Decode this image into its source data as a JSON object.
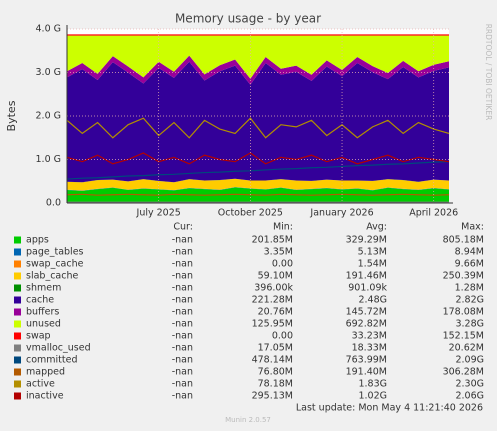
{
  "chart_data": {
    "type": "area",
    "title": "Memory usage - by year",
    "ylabel": "Bytes",
    "side_label": "RRDTOOL / TOBI OETIKER",
    "columns": [
      "Cur:",
      "Min:",
      "Avg:",
      "Max:"
    ],
    "last_update": "Last update: Mon May  4 11:21:40 2026",
    "footer": "Munin 2.0.57",
    "grid": true,
    "categories": [
      null,
      null,
      null,
      null,
      null,
      null,
      "July 2025",
      null,
      null,
      null,
      null,
      null,
      "October 2025",
      null,
      null,
      null,
      null,
      null,
      "January 2026",
      null,
      null,
      null,
      null,
      null,
      "April 2026",
      null
    ],
    "ylim": [
      0,
      4
    ],
    "yticks": [
      {
        "value": 0,
        "label": "0.0"
      },
      {
        "value": 1,
        "label": "1.0 G"
      },
      {
        "value": 2,
        "label": "2.0 G"
      },
      {
        "value": 3,
        "label": "3.0 G"
      },
      {
        "value": 4,
        "label": "4.0 G"
      }
    ],
    "series": [
      {
        "name": "apps",
        "style": "area",
        "color": "#00cc00",
        "stats": [
          "-nan",
          "201.85M",
          "329.29M",
          "805.18M"
        ],
        "values": [
          0.3,
          0.28,
          0.32,
          0.35,
          0.3,
          0.33,
          0.31,
          0.29,
          0.34,
          0.32,
          0.3,
          0.36,
          0.33,
          0.31,
          0.35,
          0.3,
          0.32,
          0.34,
          0.31,
          0.33,
          0.29,
          0.35,
          0.32,
          0.3,
          0.34,
          0.31
        ]
      },
      {
        "name": "page_tables",
        "style": "area",
        "color": "#0066b3",
        "stats": [
          "-nan",
          "3.35M",
          "5.13M",
          "8.94M"
        ],
        "values": [
          0.005,
          0.005,
          0.005,
          0.005,
          0.005,
          0.005,
          0.005,
          0.005,
          0.005,
          0.005,
          0.005,
          0.005,
          0.005,
          0.005,
          0.005,
          0.005,
          0.005,
          0.005,
          0.005,
          0.005,
          0.005,
          0.005,
          0.005,
          0.005,
          0.005,
          0.005
        ]
      },
      {
        "name": "swap_cache",
        "style": "area",
        "color": "#ff8000",
        "stats": [
          "-nan",
          "0.00",
          "1.54M",
          "9.66M"
        ],
        "values": [
          0.0015,
          0.0015,
          0.0015,
          0.0015,
          0.0015,
          0.0015,
          0.0015,
          0.0015,
          0.0015,
          0.0015,
          0.0015,
          0.0015,
          0.0015,
          0.0015,
          0.0015,
          0.0015,
          0.0015,
          0.0015,
          0.0015,
          0.0015,
          0.0015,
          0.0015,
          0.0015,
          0.0015,
          0.0015,
          0.0015
        ]
      },
      {
        "name": "slab_cache",
        "style": "area",
        "color": "#ffcc00",
        "stats": [
          "-nan",
          "59.10M",
          "191.46M",
          "250.39M"
        ],
        "values": [
          0.18,
          0.19,
          0.2,
          0.18,
          0.19,
          0.21,
          0.19,
          0.18,
          0.2,
          0.19,
          0.22,
          0.19,
          0.18,
          0.2,
          0.19,
          0.21,
          0.18,
          0.19,
          0.2,
          0.18,
          0.21,
          0.19,
          0.2,
          0.18,
          0.19,
          0.2
        ]
      },
      {
        "name": "shmem",
        "style": "area",
        "color": "#008f00",
        "stats": [
          "-nan",
          "396.00k",
          "901.09k",
          "1.28M"
        ],
        "values": [
          0.001,
          0.001,
          0.001,
          0.001,
          0.001,
          0.001,
          0.001,
          0.001,
          0.001,
          0.001,
          0.001,
          0.001,
          0.001,
          0.001,
          0.001,
          0.001,
          0.001,
          0.001,
          0.001,
          0.001,
          0.001,
          0.001,
          0.001,
          0.001,
          0.001,
          0.001
        ]
      },
      {
        "name": "cache",
        "style": "area",
        "color": "#330099",
        "stats": [
          "-nan",
          "221.28M",
          "2.48G",
          "2.82G"
        ],
        "values": [
          2.4,
          2.6,
          2.3,
          2.7,
          2.5,
          2.2,
          2.6,
          2.4,
          2.7,
          2.3,
          2.5,
          2.6,
          2.2,
          2.7,
          2.4,
          2.5,
          2.3,
          2.6,
          2.4,
          2.7,
          2.5,
          2.3,
          2.6,
          2.4,
          2.5,
          2.6
        ]
      },
      {
        "name": "buffers",
        "style": "area",
        "color": "#990099",
        "stats": [
          "-nan",
          "20.76M",
          "145.72M",
          "178.08M"
        ],
        "values": [
          0.14,
          0.14,
          0.14,
          0.14,
          0.14,
          0.14,
          0.14,
          0.14,
          0.14,
          0.14,
          0.14,
          0.14,
          0.14,
          0.14,
          0.14,
          0.14,
          0.14,
          0.14,
          0.14,
          0.14,
          0.14,
          0.14,
          0.14,
          0.14,
          0.14,
          0.14
        ]
      },
      {
        "name": "unused",
        "style": "area",
        "color": "#ccff00",
        "stats": [
          "-nan",
          "125.95M",
          "692.82M",
          "3.28G"
        ],
        "values": [
          0.82,
          0.63,
          0.88,
          0.47,
          0.71,
          0.96,
          0.6,
          0.83,
          0.46,
          0.89,
          0.68,
          0.55,
          0.99,
          0.49,
          0.76,
          0.69,
          0.9,
          0.57,
          0.79,
          0.49,
          0.7,
          0.86,
          0.58,
          0.82,
          0.67,
          0.59
        ]
      },
      {
        "name": "swap",
        "style": "area",
        "color": "#ff0000",
        "stats": [
          "-nan",
          "0.00",
          "33.23M",
          "152.15M"
        ],
        "values": [
          0.03,
          0.03,
          0.03,
          0.03,
          0.03,
          0.03,
          0.03,
          0.03,
          0.03,
          0.03,
          0.03,
          0.03,
          0.03,
          0.03,
          0.03,
          0.03,
          0.03,
          0.03,
          0.03,
          0.03,
          0.03,
          0.03,
          0.03,
          0.03,
          0.03,
          0.03
        ]
      },
      {
        "name": "vmalloc_used",
        "style": "line",
        "color": "#808080",
        "stats": [
          "-nan",
          "17.05M",
          "18.33M",
          "20.62M"
        ],
        "values": [
          0.018,
          0.018,
          0.018,
          0.018,
          0.018,
          0.018,
          0.018,
          0.018,
          0.018,
          0.018,
          0.018,
          0.018,
          0.018,
          0.018,
          0.018,
          0.018,
          0.018,
          0.018,
          0.018,
          0.018,
          0.018,
          0.018,
          0.018,
          0.018,
          0.018,
          0.018
        ]
      },
      {
        "name": "committed",
        "style": "line",
        "color": "#00487d",
        "stats": [
          "-nan",
          "478.14M",
          "763.99M",
          "2.09G"
        ],
        "values": [
          0.55,
          0.57,
          0.58,
          0.6,
          0.62,
          0.63,
          0.65,
          0.66,
          0.68,
          0.7,
          0.71,
          0.73,
          0.74,
          0.76,
          0.78,
          0.79,
          0.81,
          0.82,
          0.84,
          0.86,
          0.87,
          0.89,
          0.9,
          0.92,
          0.94,
          0.95
        ]
      },
      {
        "name": "mapped",
        "style": "line",
        "color": "#b35a00",
        "stats": [
          "-nan",
          "76.80M",
          "191.40M",
          "306.28M"
        ],
        "values": [
          0.19,
          0.2,
          0.18,
          0.19,
          0.2,
          0.19,
          0.18,
          0.2,
          0.19,
          0.18,
          0.19,
          0.2,
          0.19,
          0.18,
          0.2,
          0.19,
          0.18,
          0.19,
          0.2,
          0.19,
          0.18,
          0.19,
          0.2,
          0.19,
          0.18,
          0.19
        ]
      },
      {
        "name": "active",
        "style": "line",
        "color": "#b38f00",
        "stats": [
          "-nan",
          "78.18M",
          "1.83G",
          "2.30G"
        ],
        "values": [
          1.9,
          1.6,
          1.85,
          1.5,
          1.8,
          1.95,
          1.55,
          1.85,
          1.5,
          1.9,
          1.7,
          1.6,
          1.95,
          1.5,
          1.8,
          1.75,
          1.9,
          1.55,
          1.8,
          1.5,
          1.75,
          1.9,
          1.6,
          1.85,
          1.7,
          1.6
        ]
      },
      {
        "name": "inactive",
        "style": "line",
        "color": "#b30000",
        "stats": [
          "-nan",
          "295.13M",
          "1.02G",
          "2.06G"
        ],
        "values": [
          1.05,
          0.95,
          1.1,
          0.9,
          1.0,
          1.15,
          0.95,
          1.05,
          0.9,
          1.1,
          1.0,
          0.95,
          1.15,
          0.9,
          1.05,
          1.0,
          1.1,
          0.95,
          1.05,
          0.9,
          1.0,
          1.1,
          0.95,
          1.05,
          1.0,
          0.95
        ]
      }
    ]
  }
}
